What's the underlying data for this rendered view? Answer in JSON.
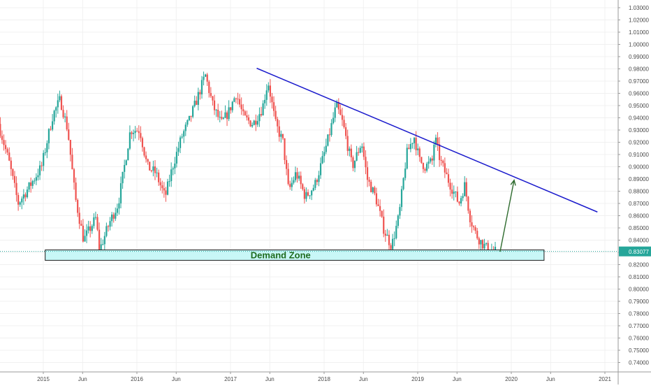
{
  "chart_data": {
    "type": "candlestick",
    "xlabel": "",
    "ylabel": "",
    "ylim": [
      0.73,
      1.035
    ],
    "grid": true,
    "y_ticks": [
      "1.03000",
      "1.02000",
      "1.01000",
      "1.00000",
      "0.99000",
      "0.98000",
      "0.97000",
      "0.96000",
      "0.95000",
      "0.94000",
      "0.93000",
      "0.92000",
      "0.91000",
      "0.90000",
      "0.89000",
      "0.88000",
      "0.87000",
      "0.86000",
      "0.85000",
      "0.84000",
      "0.83000",
      "0.82000",
      "0.81000",
      "0.80000",
      "0.79000",
      "0.78000",
      "0.77000",
      "0.76000",
      "0.75000",
      "0.74000"
    ],
    "x_ticks": [
      {
        "label": "2015",
        "t": 2015.0
      },
      {
        "label": "Jun",
        "t": 2015.42
      },
      {
        "label": "2016",
        "t": 2016.0
      },
      {
        "label": "Jun",
        "t": 2016.42
      },
      {
        "label": "2017",
        "t": 2017.0
      },
      {
        "label": "Jun",
        "t": 2017.42
      },
      {
        "label": "2018",
        "t": 2018.0
      },
      {
        "label": "Jun",
        "t": 2018.42
      },
      {
        "label": "2019",
        "t": 2019.0
      },
      {
        "label": "Jun",
        "t": 2019.42
      },
      {
        "label": "2020",
        "t": 2020.0
      },
      {
        "label": "Jun",
        "t": 2020.42
      },
      {
        "label": "2021",
        "t": 2021.0
      }
    ],
    "xlim": [
      2014.54,
      2021.15
    ],
    "price_path": [
      {
        "t": 2014.54,
        "v": 0.935
      },
      {
        "t": 2014.65,
        "v": 0.905
      },
      {
        "t": 2014.75,
        "v": 0.87
      },
      {
        "t": 2014.88,
        "v": 0.885
      },
      {
        "t": 2015.0,
        "v": 0.9
      },
      {
        "t": 2015.12,
        "v": 0.942
      },
      {
        "t": 2015.2,
        "v": 0.955
      },
      {
        "t": 2015.28,
        "v": 0.93
      },
      {
        "t": 2015.36,
        "v": 0.875
      },
      {
        "t": 2015.45,
        "v": 0.84
      },
      {
        "t": 2015.58,
        "v": 0.858
      },
      {
        "t": 2015.62,
        "v": 0.832
      },
      {
        "t": 2015.73,
        "v": 0.855
      },
      {
        "t": 2015.82,
        "v": 0.87
      },
      {
        "t": 2015.95,
        "v": 0.93
      },
      {
        "t": 2016.05,
        "v": 0.93
      },
      {
        "t": 2016.13,
        "v": 0.9
      },
      {
        "t": 2016.22,
        "v": 0.895
      },
      {
        "t": 2016.32,
        "v": 0.875
      },
      {
        "t": 2016.4,
        "v": 0.9
      },
      {
        "t": 2016.5,
        "v": 0.925
      },
      {
        "t": 2016.58,
        "v": 0.938
      },
      {
        "t": 2016.66,
        "v": 0.955
      },
      {
        "t": 2016.75,
        "v": 0.975
      },
      {
        "t": 2016.83,
        "v": 0.95
      },
      {
        "t": 2016.92,
        "v": 0.935
      },
      {
        "t": 2017.0,
        "v": 0.945
      },
      {
        "t": 2017.08,
        "v": 0.96
      },
      {
        "t": 2017.16,
        "v": 0.94
      },
      {
        "t": 2017.26,
        "v": 0.935
      },
      {
        "t": 2017.36,
        "v": 0.948
      },
      {
        "t": 2017.42,
        "v": 0.97
      },
      {
        "t": 2017.5,
        "v": 0.935
      },
      {
        "t": 2017.58,
        "v": 0.92
      },
      {
        "t": 2017.64,
        "v": 0.88
      },
      {
        "t": 2017.72,
        "v": 0.895
      },
      {
        "t": 2017.82,
        "v": 0.875
      },
      {
        "t": 2017.92,
        "v": 0.885
      },
      {
        "t": 2018.0,
        "v": 0.905
      },
      {
        "t": 2018.07,
        "v": 0.925
      },
      {
        "t": 2018.15,
        "v": 0.95
      },
      {
        "t": 2018.22,
        "v": 0.935
      },
      {
        "t": 2018.32,
        "v": 0.9
      },
      {
        "t": 2018.42,
        "v": 0.92
      },
      {
        "t": 2018.48,
        "v": 0.89
      },
      {
        "t": 2018.57,
        "v": 0.875
      },
      {
        "t": 2018.66,
        "v": 0.848
      },
      {
        "t": 2018.74,
        "v": 0.835
      },
      {
        "t": 2018.82,
        "v": 0.86
      },
      {
        "t": 2018.9,
        "v": 0.91
      },
      {
        "t": 2018.98,
        "v": 0.925
      },
      {
        "t": 2019.04,
        "v": 0.905
      },
      {
        "t": 2019.1,
        "v": 0.9
      },
      {
        "t": 2019.18,
        "v": 0.905
      },
      {
        "t": 2019.2,
        "v": 0.925
      },
      {
        "t": 2019.26,
        "v": 0.905
      },
      {
        "t": 2019.34,
        "v": 0.89
      },
      {
        "t": 2019.4,
        "v": 0.88
      },
      {
        "t": 2019.46,
        "v": 0.87
      },
      {
        "t": 2019.52,
        "v": 0.885
      },
      {
        "t": 2019.58,
        "v": 0.858
      },
      {
        "t": 2019.64,
        "v": 0.845
      },
      {
        "t": 2019.7,
        "v": 0.838
      },
      {
        "t": 2019.76,
        "v": 0.833
      },
      {
        "t": 2019.82,
        "v": 0.83077
      }
    ],
    "annotations": {
      "demand_zone": {
        "label": "Demand Zone",
        "y_top": 0.832,
        "y_bottom": 0.8235,
        "t_start": 2015.02,
        "t_end": 2020.35
      },
      "trendline": {
        "t1": 2017.28,
        "v1": 0.9805,
        "t2": 2020.92,
        "v2": 0.863,
        "color": "#1a1acc"
      },
      "arrow": {
        "t1": 2019.88,
        "v1": 0.8305,
        "t2": 2020.03,
        "v2": 0.889,
        "color": "#2e6b2e"
      },
      "last_price": {
        "label": "0.83077",
        "value": 0.83077
      }
    },
    "colors": {
      "up": "#26a69a",
      "down": "#ef5350",
      "demand_fill": "#c8f7f7",
      "demand_border": "#1a1a1a",
      "demand_text": "#1e6b1e",
      "price_badge": "#26a69a",
      "grid": "#f0f0f0"
    }
  }
}
